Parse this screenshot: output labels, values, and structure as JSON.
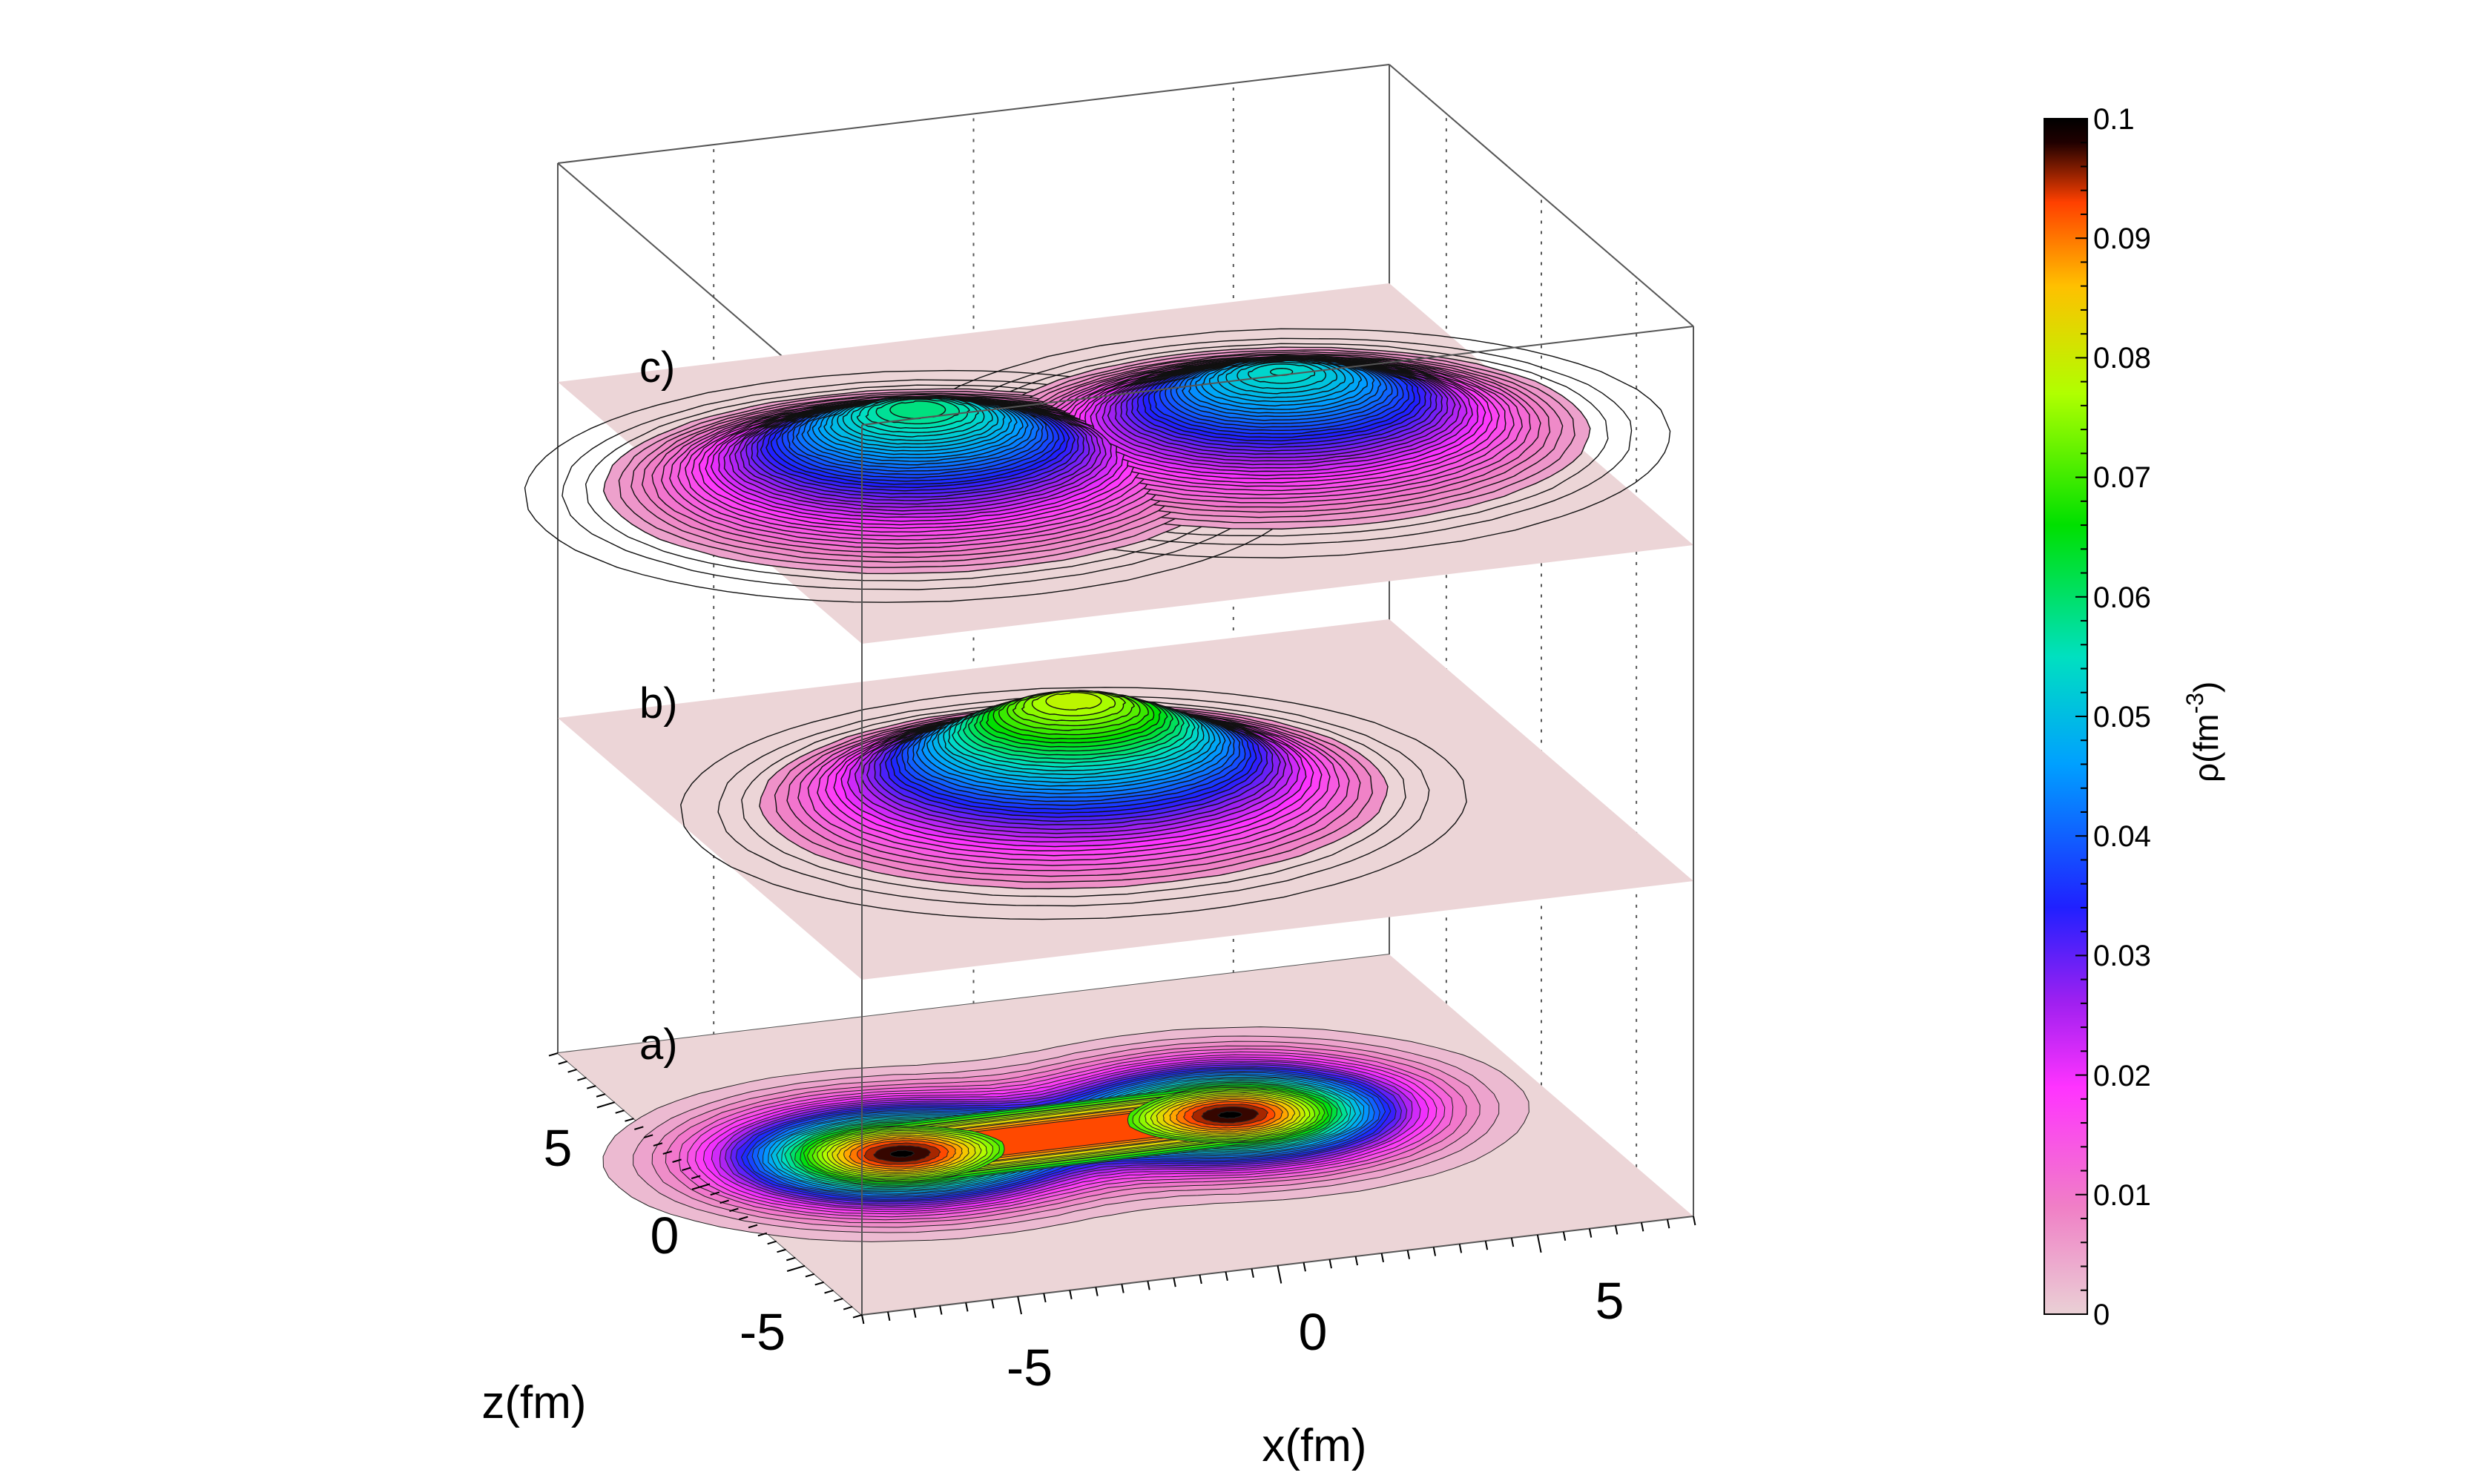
{
  "chart_data": {
    "type": "surface",
    "panel_labels": [
      "a)",
      "b)",
      "c)"
    ],
    "xlabel": "x(fm)",
    "zlabel": "z(fm)",
    "x_ticks": [
      "-5",
      "0",
      "5"
    ],
    "z_ticks": [
      "5",
      "0",
      "-5"
    ],
    "xlim": [
      -8,
      8
    ],
    "zlim": [
      -8,
      8
    ],
    "colorbar": {
      "label": "ρ(fm",
      "label_superscript": "-3",
      "label_close": ")",
      "min": 0,
      "max": 0.1,
      "ticks": [
        "0",
        "0.01",
        "0.02",
        "0.03",
        "0.04",
        "0.05",
        "0.06",
        "0.07",
        "0.08",
        "0.09",
        "0.1"
      ],
      "colors": [
        "#ead0d5",
        "#f07fc6",
        "#ff33ff",
        "#a020f0",
        "#2020ff",
        "#00a0ff",
        "#00e0c0",
        "#00e000",
        "#b0ff00",
        "#ffc000",
        "#ff4000",
        "#200000"
      ]
    },
    "series": [
      {
        "panel": "a)",
        "style": "filled-contour",
        "centers": [
          {
            "x": -4.2,
            "z": 0.4,
            "peak": 0.1
          },
          {
            "x": 2.2,
            "z": 0.4,
            "peak": 0.1
          }
        ]
      },
      {
        "panel": "b)",
        "style": "surface",
        "centers": [
          {
            "x": -1.0,
            "z": 0.0,
            "peak": 0.08
          }
        ]
      },
      {
        "panel": "c)",
        "style": "surface",
        "centers": [
          {
            "x": -4.0,
            "z": 0.0,
            "peak": 0.06
          },
          {
            "x": 3.0,
            "z": 0.0,
            "peak": 0.055
          }
        ]
      }
    ]
  }
}
